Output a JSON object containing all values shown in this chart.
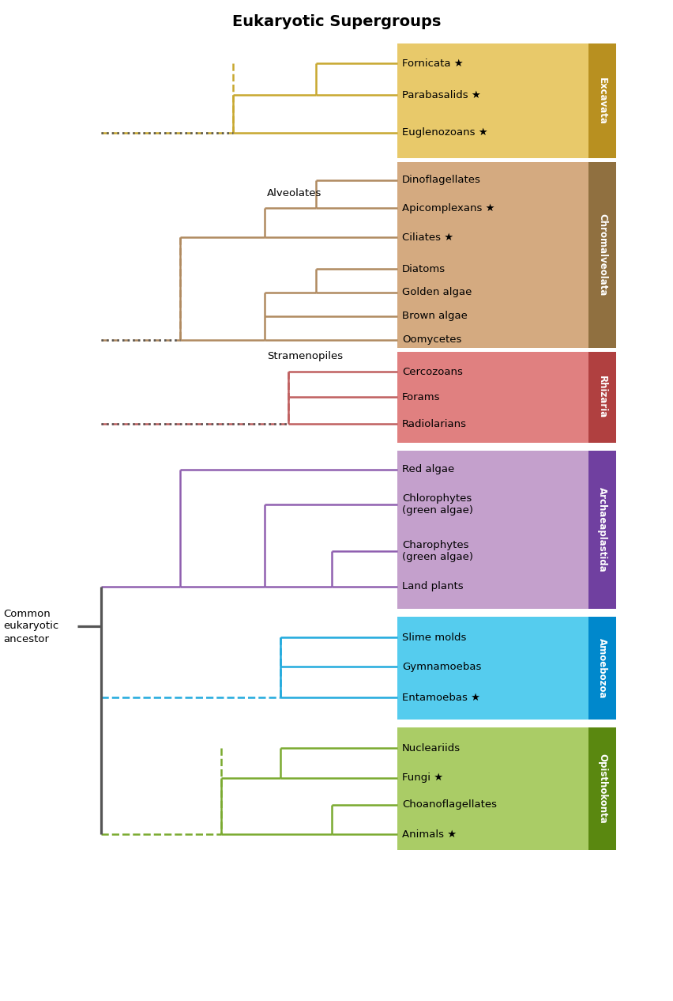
{
  "title": "Eukaryotic Supergroups",
  "title_fontsize": 14,
  "figsize": [
    8.53,
    12.66
  ],
  "dpi": 100,
  "background": "#ffffff",
  "ancestor_label": "Common\neukaryotic\nancestor",
  "alveolates_label": "Alveolates",
  "stramenopiles_label": "Stramenopiles",
  "colors": {
    "trunk": "#555555",
    "excavata_line": "#c8a830",
    "excavata_bg": "#e8c96a",
    "excavata_border": "#b89020",
    "chrom_line": "#b08a60",
    "chrom_bg": "#d4aa80",
    "chrom_border": "#907040",
    "rhiz_line": "#c06060",
    "rhiz_bg": "#e08080",
    "rhiz_border": "#b04040",
    "arch_line": "#9060b0",
    "arch_bg": "#c4a0cc",
    "arch_border": "#7040a0",
    "amoe_line": "#22aadd",
    "amoe_bg": "#55ccee",
    "amoe_border": "#0088cc",
    "opis_line": "#7aaa30",
    "opis_bg": "#aacc66",
    "opis_border": "#5a8810"
  },
  "member_fontsize": 9.5,
  "label_fontsize": 9.5
}
